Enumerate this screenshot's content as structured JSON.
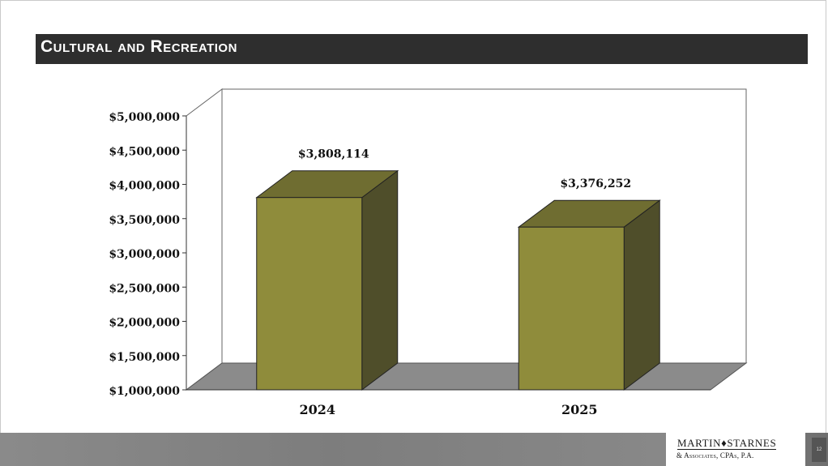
{
  "title": "Cultural and Recreation",
  "colors": {
    "bar_front": "#8f8c3b",
    "bar_top": "#6f6d31",
    "bar_side": "#4f4e2a",
    "floor": "#8b8b8b",
    "title_bar": "#2e2e2e"
  },
  "chart_data": {
    "type": "bar",
    "categories": [
      "2024",
      "2025"
    ],
    "values": [
      3808114,
      3376252
    ],
    "data_labels": [
      "$3,808,114",
      "$3,376,252"
    ],
    "ylim": [
      1000000,
      5000000
    ],
    "yticks": [
      {
        "value": 1000000,
        "label": "$1,000,000"
      },
      {
        "value": 1500000,
        "label": "$1,500,000"
      },
      {
        "value": 2000000,
        "label": "$2,000,000"
      },
      {
        "value": 2500000,
        "label": "$2,500,000"
      },
      {
        "value": 3000000,
        "label": "$3,000,000"
      },
      {
        "value": 3500000,
        "label": "$3,500,000"
      },
      {
        "value": 4000000,
        "label": "$4,000,000"
      },
      {
        "value": 4500000,
        "label": "$4,500,000"
      },
      {
        "value": 5000000,
        "label": "$5,000,000"
      }
    ],
    "grid": false,
    "style": "3d"
  },
  "footer": {
    "logo_line1": "MARTIN♦STARNES",
    "logo_line2": "& Associates, CPAs, P.A.",
    "page_number": "12"
  }
}
